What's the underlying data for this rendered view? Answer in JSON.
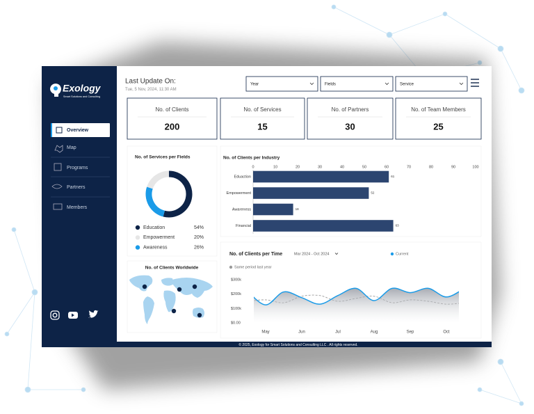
{
  "sidebar": {
    "brand": "Exology",
    "tagline": "Smart Solutions and Consulting",
    "nav": [
      "Overview",
      "Map",
      "Programs",
      "Partners",
      "Members"
    ]
  },
  "header": {
    "title": "Last Update On:",
    "timestamp": "Tue, 5 Nov, 2024, 11:30 AM",
    "filters": [
      "Year",
      "Fields",
      "Service"
    ]
  },
  "kpis": [
    {
      "label": "No. of Clients",
      "value": 200
    },
    {
      "label": "No. of Services",
      "value": 15
    },
    {
      "label": "No. of Partners",
      "value": 30
    },
    {
      "label": "No. of Team Members",
      "value": 25
    }
  ],
  "services_chart": {
    "type": "donut",
    "title": "No. of Services per Fields",
    "categories": [
      "Education",
      "Empowerment",
      "Awareness"
    ],
    "values": [
      54,
      20,
      26
    ],
    "value_labels": [
      "54%",
      "20%",
      "26%"
    ],
    "colors": [
      "#0d2347",
      "#e6e6e6",
      "#1a9be8"
    ]
  },
  "map": {
    "title": "No. of Clients Worldwide"
  },
  "industry_chart": {
    "type": "bar",
    "orientation": "horizontal",
    "title": "No. of Clients per Industry",
    "categories": [
      "Eduaction",
      "Empowerment",
      "Awareness",
      "Financial"
    ],
    "values": [
      61,
      52,
      18,
      63
    ],
    "xlim": [
      0,
      100
    ],
    "xticks": [
      0,
      10,
      20,
      30,
      40,
      50,
      60,
      70,
      80,
      90,
      100
    ],
    "color": "#2c4570"
  },
  "time_chart": {
    "type": "line",
    "title": "No. of Clients per Time",
    "period": "Mar 2024 - Oct 2024",
    "categories": [
      null,
      "May",
      null,
      "Jun",
      null,
      "Jul",
      null,
      "Aug",
      null,
      "Sep",
      null,
      "Oct",
      null
    ],
    "series": [
      {
        "name": "Current",
        "color": "#1a9be8",
        "values": [
          220000,
          125000,
          215000,
          175000,
          130000,
          190000,
          240000,
          155000,
          240000,
          210000,
          240000,
          180000,
          240000
        ]
      },
      {
        "name": "Same period last year",
        "color": "#9a9a9a",
        "values": [
          150000,
          160000,
          140000,
          185000,
          190000,
          150000,
          170000,
          185000,
          140000,
          160000,
          150000,
          130000,
          140000
        ]
      }
    ],
    "ylim": [
      0,
      300000
    ],
    "yticks": [
      {
        "value": 0,
        "label": "$0.00"
      },
      {
        "value": 100000,
        "label": "$100k"
      },
      {
        "value": 200000,
        "label": "$200k"
      },
      {
        "value": 300000,
        "label": "$300k"
      }
    ]
  },
  "footer": {
    "copyright": "© 2025, Exology for Smart Solutions and Consulting LLC . All rights reserved."
  }
}
